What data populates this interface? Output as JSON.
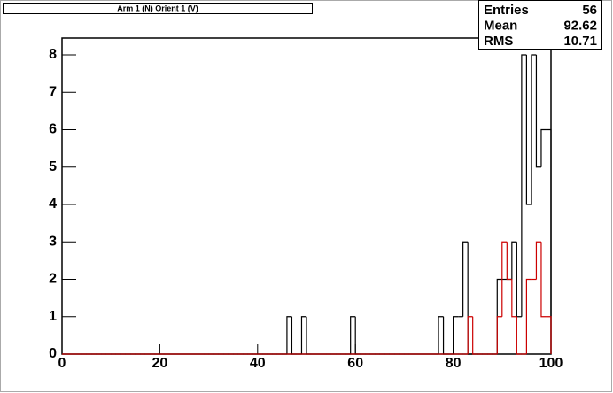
{
  "title": "Arm 1 (N) Orient 1 (V)",
  "stats": [
    {
      "label": "Entries",
      "value": 56
    },
    {
      "label": "Mean",
      "value": 92.62
    },
    {
      "label": "RMS",
      "value": 10.71
    }
  ],
  "chart_data": {
    "type": "histogram",
    "bins": [
      0,
      1,
      2,
      3,
      4,
      5,
      6,
      7,
      8,
      9,
      10,
      11,
      12,
      13,
      14,
      15,
      16,
      17,
      18,
      19,
      20,
      21,
      22,
      23,
      24,
      25,
      26,
      27,
      28,
      29,
      30,
      31,
      32,
      33,
      34,
      35,
      36,
      37,
      38,
      39,
      40,
      41,
      42,
      43,
      44,
      45,
      46,
      47,
      48,
      49,
      50,
      51,
      52,
      53,
      54,
      55,
      56,
      57,
      58,
      59,
      60,
      61,
      62,
      63,
      64,
      65,
      66,
      67,
      68,
      69,
      70,
      71,
      72,
      73,
      74,
      75,
      76,
      77,
      78,
      79,
      80,
      81,
      82,
      83,
      84,
      85,
      86,
      87,
      88,
      89,
      90,
      91,
      92,
      93,
      94,
      95,
      96,
      97,
      98,
      99,
      100
    ],
    "series": [
      {
        "color": "#000000",
        "values": [
          0,
          0,
          0,
          0,
          0,
          0,
          0,
          0,
          0,
          0,
          0,
          0,
          0,
          0,
          0,
          0,
          0,
          0,
          0,
          0,
          0,
          0,
          0,
          0,
          0,
          0,
          0,
          0,
          0,
          0,
          0,
          0,
          0,
          0,
          0,
          0,
          0,
          0,
          0,
          0,
          0,
          0,
          0,
          0,
          0,
          0,
          1,
          0,
          0,
          1,
          0,
          0,
          0,
          0,
          0,
          0,
          0,
          0,
          0,
          1,
          0,
          0,
          0,
          0,
          0,
          0,
          0,
          0,
          0,
          0,
          0,
          0,
          0,
          0,
          0,
          0,
          0,
          1,
          0,
          0,
          1,
          1,
          3,
          0,
          0,
          0,
          0,
          0,
          0,
          2,
          2,
          2,
          3,
          1,
          8,
          4,
          8,
          5,
          6,
          6
        ]
      },
      {
        "color": "#cc0000",
        "values": [
          0,
          0,
          0,
          0,
          0,
          0,
          0,
          0,
          0,
          0,
          0,
          0,
          0,
          0,
          0,
          0,
          0,
          0,
          0,
          0,
          0,
          0,
          0,
          0,
          0,
          0,
          0,
          0,
          0,
          0,
          0,
          0,
          0,
          0,
          0,
          0,
          0,
          0,
          0,
          0,
          0,
          0,
          0,
          0,
          0,
          0,
          0,
          0,
          0,
          0,
          0,
          0,
          0,
          0,
          0,
          0,
          0,
          0,
          0,
          0,
          0,
          0,
          0,
          0,
          0,
          0,
          0,
          0,
          0,
          0,
          0,
          0,
          0,
          0,
          0,
          0,
          0,
          0,
          0,
          0,
          0,
          0,
          0,
          1,
          0,
          0,
          0,
          0,
          0,
          1,
          3,
          2,
          1,
          0,
          0,
          2,
          2,
          3,
          1,
          1
        ]
      }
    ],
    "xlim": [
      0,
      100
    ],
    "xticks": [
      0,
      20,
      40,
      60,
      80,
      100
    ],
    "ylim": [
      0,
      8.45
    ],
    "yticks": [
      0,
      1,
      2,
      3,
      4,
      5,
      6,
      7,
      8
    ]
  }
}
